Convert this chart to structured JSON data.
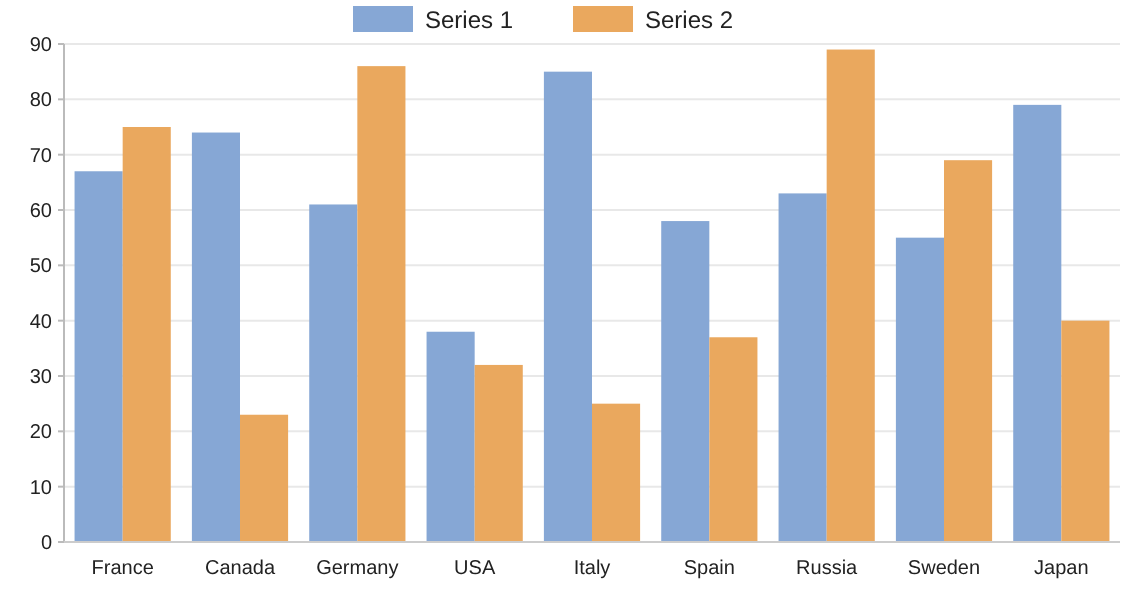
{
  "chart_data": {
    "type": "bar",
    "categories": [
      "France",
      "Canada",
      "Germany",
      "USA",
      "Italy",
      "Spain",
      "Russia",
      "Sweden",
      "Japan"
    ],
    "series": [
      {
        "name": "Series 1",
        "color": "#86a7d5",
        "values": [
          67,
          74,
          61,
          38,
          85,
          58,
          63,
          55,
          79
        ]
      },
      {
        "name": "Series 2",
        "color": "#eaa85e",
        "values": [
          75,
          23,
          86,
          32,
          25,
          37,
          89,
          69,
          40
        ]
      }
    ],
    "ylim": [
      0,
      90
    ],
    "yticks": [
      0,
      10,
      20,
      30,
      40,
      50,
      60,
      70,
      80,
      90
    ],
    "grid": "y",
    "legend": "top"
  }
}
